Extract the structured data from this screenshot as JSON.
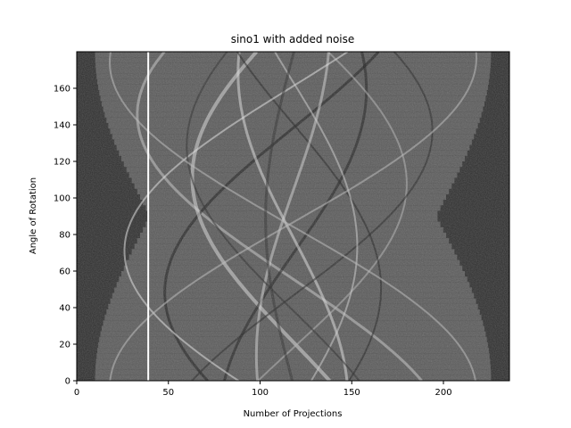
{
  "chart_data": {
    "type": "heatmap",
    "title": "sino1 with added noise",
    "xlabel": "Number of Projections",
    "ylabel": "Angle of Rotation",
    "xlim": [
      0,
      236
    ],
    "ylim": [
      0,
      180
    ],
    "xticks": [
      0,
      50,
      100,
      150,
      200
    ],
    "yticks": [
      0,
      20,
      40,
      60,
      80,
      100,
      120,
      140,
      160
    ],
    "colormap": "gray",
    "grid": false,
    "annotations": [
      {
        "kind": "vertical-line",
        "x": 39,
        "color": "#ffffff"
      }
    ]
  }
}
